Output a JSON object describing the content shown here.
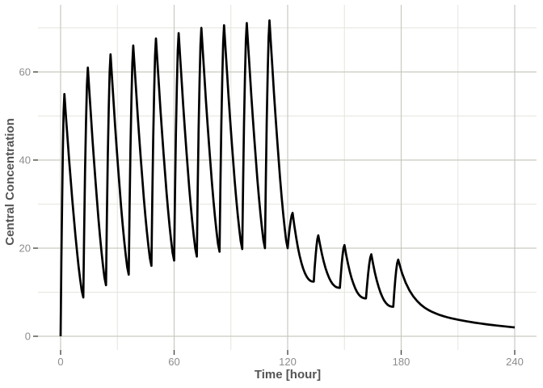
{
  "chart_data": {
    "type": "line",
    "title": "",
    "xlabel": "Time [hour]",
    "ylabel": "Central Concentration",
    "x_major_ticks": [
      0,
      60,
      120,
      180,
      240
    ],
    "x_minor_ticks": [
      30,
      90,
      150,
      210
    ],
    "y_major_ticks": [
      0,
      20,
      40,
      60
    ],
    "y_minor_ticks": [
      10,
      30,
      50,
      70
    ],
    "xlim": [
      -12,
      252
    ],
    "ylim": [
      -3.6,
      75.4
    ],
    "grid": "major+minor",
    "legend": "none",
    "series_name": "central-concentration",
    "regimen": {
      "loading": {
        "n_doses": 10,
        "interval_h": 12,
        "first_dose_h": 0
      },
      "maintenance": {
        "n_doses": 5,
        "interval_h": 14,
        "first_dose_h": 120
      }
    },
    "segments": [
      {
        "type": "loading",
        "t0": 0,
        "c0": 0,
        "tp": 2.0,
        "cp": 55.0,
        "t1": 12,
        "c1": 8.8
      },
      {
        "type": "loading",
        "t0": 12,
        "c0": 8.8,
        "tp": 14.4,
        "cp": 61.0,
        "t1": 24,
        "c1": 11.6
      },
      {
        "type": "loading",
        "t0": 24,
        "c0": 11.6,
        "tp": 26.4,
        "cp": 64.0,
        "t1": 36,
        "c1": 14.0
      },
      {
        "type": "loading",
        "t0": 36,
        "c0": 14.0,
        "tp": 38.4,
        "cp": 66.0,
        "t1": 48,
        "c1": 16.0
      },
      {
        "type": "loading",
        "t0": 48,
        "c0": 16.0,
        "tp": 50.4,
        "cp": 67.6,
        "t1": 60,
        "c1": 17.2
      },
      {
        "type": "loading",
        "t0": 60,
        "c0": 17.2,
        "tp": 62.4,
        "cp": 68.8,
        "t1": 72,
        "c1": 18.1
      },
      {
        "type": "loading",
        "t0": 72,
        "c0": 18.1,
        "tp": 74.4,
        "cp": 70.0,
        "t1": 84,
        "c1": 19.2
      },
      {
        "type": "loading",
        "t0": 84,
        "c0": 19.2,
        "tp": 86.4,
        "cp": 70.6,
        "t1": 96,
        "c1": 19.8
      },
      {
        "type": "loading",
        "t0": 96,
        "c0": 19.8,
        "tp": 98.4,
        "cp": 71.1,
        "t1": 108,
        "c1": 20.0
      },
      {
        "type": "loading",
        "t0": 108,
        "c0": 20.0,
        "tp": 110.4,
        "cp": 71.7,
        "t1": 120,
        "c1": 20.0
      },
      {
        "type": "maintenance",
        "t0": 120,
        "c0": 20.0,
        "tp": 122.6,
        "cp": 28.0,
        "t1": 133.8,
        "c1": 12.4
      },
      {
        "type": "maintenance",
        "t0": 133.8,
        "c0": 12.4,
        "tp": 136.2,
        "cp": 22.9,
        "t1": 147.6,
        "c1": 11.0
      },
      {
        "type": "maintenance",
        "t0": 147.6,
        "c0": 11.0,
        "tp": 150.0,
        "cp": 20.7,
        "t1": 161.4,
        "c1": 8.6
      },
      {
        "type": "maintenance",
        "t0": 161.4,
        "c0": 8.6,
        "tp": 164.2,
        "cp": 18.6,
        "t1": 175.8,
        "c1": 6.7
      },
      {
        "type": "maintenance",
        "t0": 175.8,
        "c0": 6.7,
        "tp": 178.4,
        "cp": 17.4,
        "t1": null,
        "c1": null
      }
    ],
    "tail": {
      "t_start": 178.4,
      "A": 10.5,
      "k_fast": 0.15,
      "B": 6.9,
      "k_slow": 0.02,
      "t_end": 240,
      "c_end": 2.0
    },
    "curve_shape": {
      "rise_exp": 1.6,
      "decay_exp_loading": 1.35,
      "decay_exp_maintenance": 2.4
    },
    "peaks": [
      [
        2,
        55
      ],
      [
        14.4,
        61
      ],
      [
        26.4,
        64
      ],
      [
        38.4,
        66
      ],
      [
        50.4,
        67.6
      ],
      [
        62.4,
        68.8
      ],
      [
        74.4,
        70
      ],
      [
        86.4,
        70.6
      ],
      [
        98.4,
        71.1
      ],
      [
        110.4,
        71.7
      ],
      [
        122.6,
        28
      ],
      [
        136.2,
        22.9
      ],
      [
        150,
        20.7
      ],
      [
        164.2,
        18.6
      ],
      [
        178.4,
        17.4
      ]
    ],
    "troughs": [
      [
        12,
        8.8
      ],
      [
        24,
        11.6
      ],
      [
        36,
        14
      ],
      [
        48,
        16
      ],
      [
        60,
        17.2
      ],
      [
        72,
        18.1
      ],
      [
        84,
        19.2
      ],
      [
        96,
        19.8
      ],
      [
        108,
        20
      ],
      [
        120,
        20
      ],
      [
        133.8,
        12.4
      ],
      [
        147.6,
        11
      ],
      [
        161.4,
        8.6
      ],
      [
        175.8,
        6.7
      ]
    ],
    "end_point": [
      240,
      2.0
    ],
    "colors": {
      "background": "#ffffff",
      "panel_background": "#ffffff",
      "grid_major": "#c9c9c1",
      "grid_minor": "#e5e5dd",
      "axis_tick": "#4d4d4d",
      "tick_label": "#8c8c8c",
      "axis_title": "#545454",
      "line": "#000000"
    }
  }
}
